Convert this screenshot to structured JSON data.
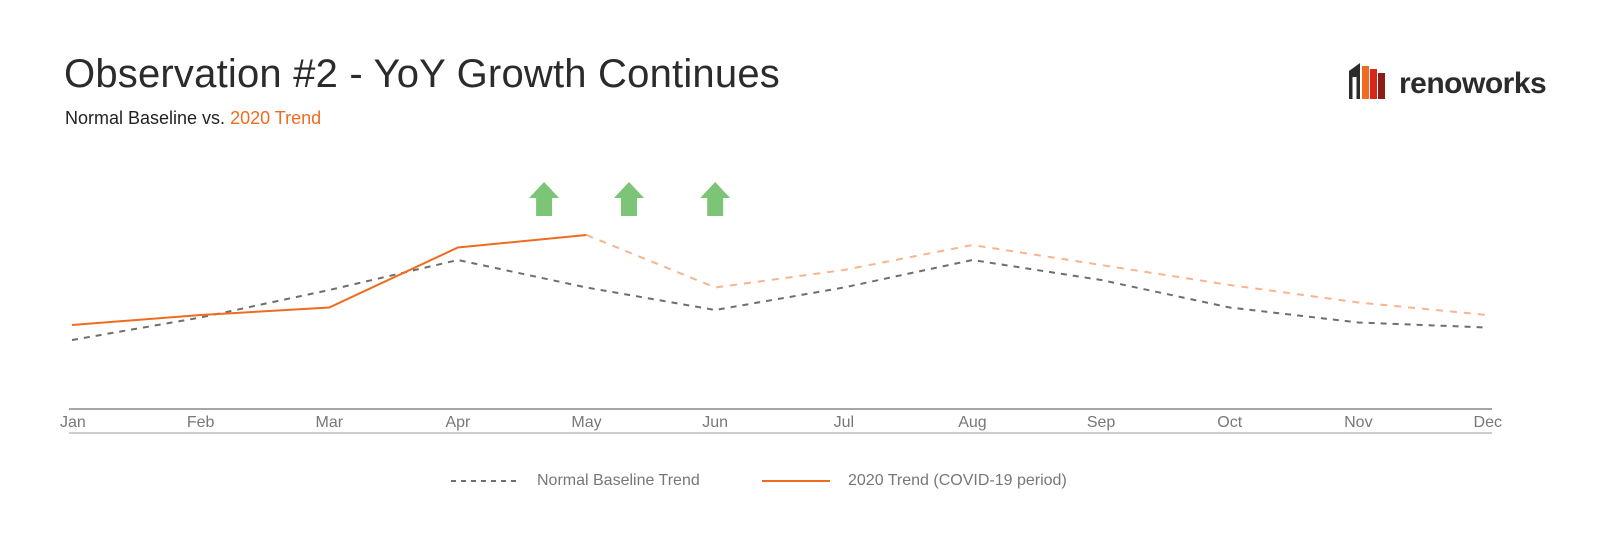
{
  "header": {
    "title": "Observation #2 - YoY Growth Continues",
    "subtitle_prefix": "Normal Baseline vs. ",
    "subtitle_highlight": "2020 Trend"
  },
  "brand": {
    "logo_text": "renoworks",
    "logo_colors": [
      "#2b2b2b",
      "#f26a21",
      "#d9261c",
      "#8c1d18"
    ]
  },
  "colors": {
    "baseline": "#6e6e6e",
    "trend": "#ef6b1f",
    "trend_projected": "#f8b48f",
    "arrows": "#7cc576",
    "axis": "#888888"
  },
  "chart_data": {
    "type": "line",
    "categories": [
      "Jan",
      "Feb",
      "Mar",
      "Apr",
      "May",
      "Jun",
      "Jul",
      "Aug",
      "Sep",
      "Oct",
      "Nov",
      "Dec"
    ],
    "ylim": [
      0,
      100
    ],
    "grid": false,
    "legend": "bottom-center",
    "series": [
      {
        "name": "Normal Baseline Trend",
        "style": "dashed",
        "values": [
          28,
          37,
          48,
          60,
          49,
          40,
          49,
          60,
          52,
          41,
          35,
          33
        ]
      },
      {
        "name": "2020 Trend (COVID-19 period)",
        "style": "solid-then-dashed",
        "values": [
          34,
          38,
          41,
          65,
          70,
          null,
          null,
          null,
          null,
          null,
          null,
          null
        ]
      },
      {
        "name": "",
        "style": "dashed-light",
        "values": [
          null,
          null,
          null,
          null,
          70,
          49,
          56,
          66,
          58,
          50,
          43,
          38
        ]
      }
    ],
    "annotations": [
      {
        "type": "up-arrow",
        "x_position": 3.67
      },
      {
        "type": "up-arrow",
        "x_position": 4.33
      },
      {
        "type": "up-arrow",
        "x_position": 5.0
      }
    ]
  }
}
